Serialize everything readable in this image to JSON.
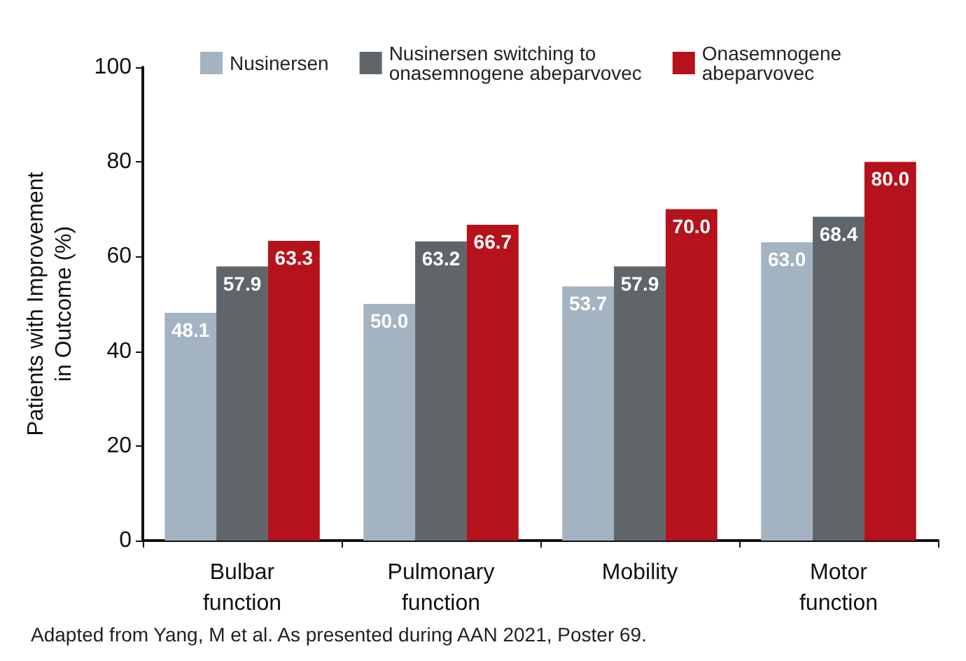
{
  "chart_data": {
    "type": "bar",
    "ylabel": "Patients with Improvement\nin Outcome (%)",
    "categories": [
      "Bulbar\nfunction",
      "Pulmonary\nfunction",
      "Mobility",
      "Motor\nfunction"
    ],
    "series": [
      {
        "name": "Nusinersen",
        "color": "#a3b3c2",
        "values": [
          48.1,
          50.0,
          53.7,
          63.0
        ],
        "value_labels": [
          "48.1",
          "50.0",
          "53.7",
          "63.0"
        ]
      },
      {
        "name": "Nusinersen switching to\nonasemnogene abeparvovec",
        "color": "#5f6569",
        "values": [
          57.9,
          63.2,
          57.9,
          68.4
        ],
        "value_labels": [
          "57.9",
          "63.2",
          "57.9",
          "68.4"
        ]
      },
      {
        "name": "Onasemnogene\nabeparvovec",
        "color": "#b5121b",
        "values": [
          63.3,
          66.7,
          70.0,
          80.0
        ],
        "value_labels": [
          "63.3",
          "66.7",
          "70.0",
          "80.0"
        ]
      }
    ],
    "ylim": [
      0,
      100
    ],
    "yticks": [
      0,
      20,
      40,
      60,
      80,
      100
    ],
    "grid": false,
    "legend": "top",
    "annotations": [
      "Adapted from Yang, M et al. As presented during AAN 2021, Poster 69."
    ]
  }
}
